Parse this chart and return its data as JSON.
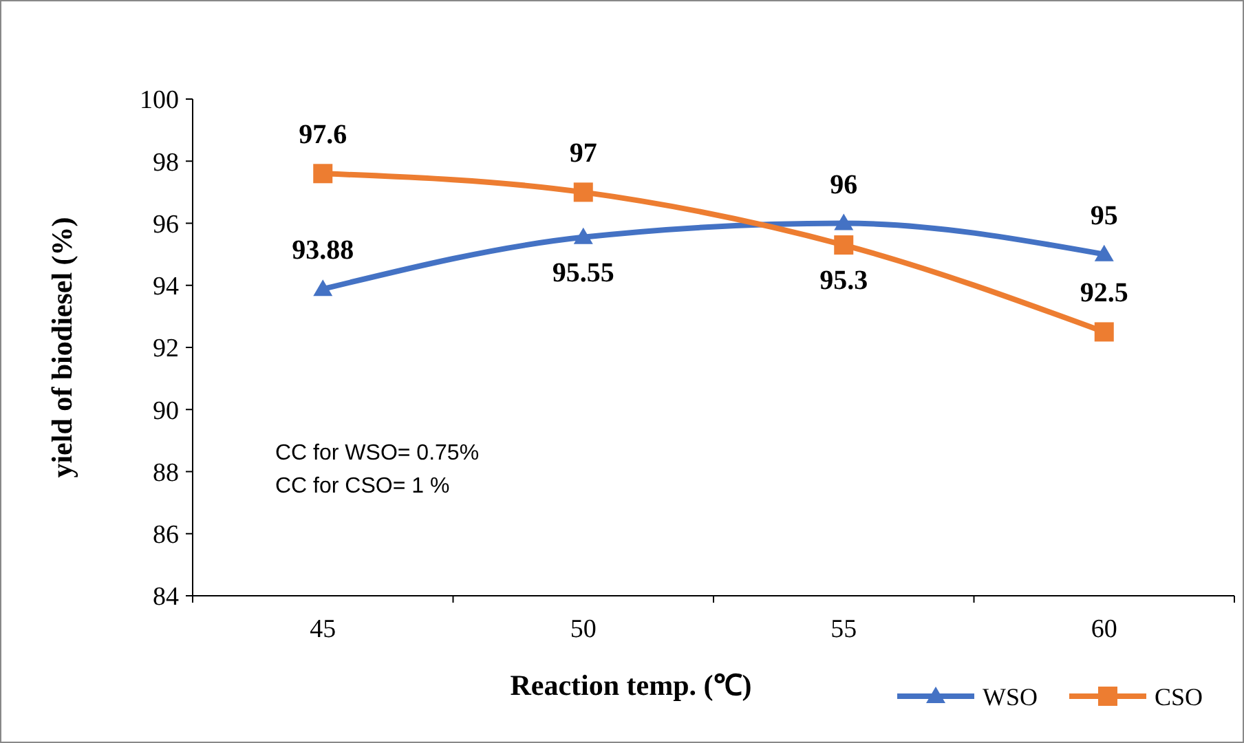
{
  "chart_data": {
    "type": "line",
    "xlabel": "Reaction temp. (℃)",
    "ylabel": "yield of biodiesel (%)",
    "categories": [
      "45",
      "50",
      "55",
      "60"
    ],
    "series": [
      {
        "name": "WSO",
        "color": "#4472c4",
        "marker": "triangle",
        "values": [
          93.88,
          95.55,
          96,
          95
        ]
      },
      {
        "name": "CSO",
        "color": "#ed7d31",
        "marker": "square",
        "values": [
          97.6,
          97,
          95.3,
          92.5
        ]
      }
    ],
    "ylim": [
      84,
      100
    ],
    "yticks": [
      84,
      86,
      88,
      90,
      92,
      94,
      96,
      98,
      100
    ],
    "data_labels": true,
    "grid": false,
    "legend": "bottom right",
    "annotations": [
      "CC for WSO= 0.75%",
      "CC for CSO= 1 %"
    ]
  }
}
